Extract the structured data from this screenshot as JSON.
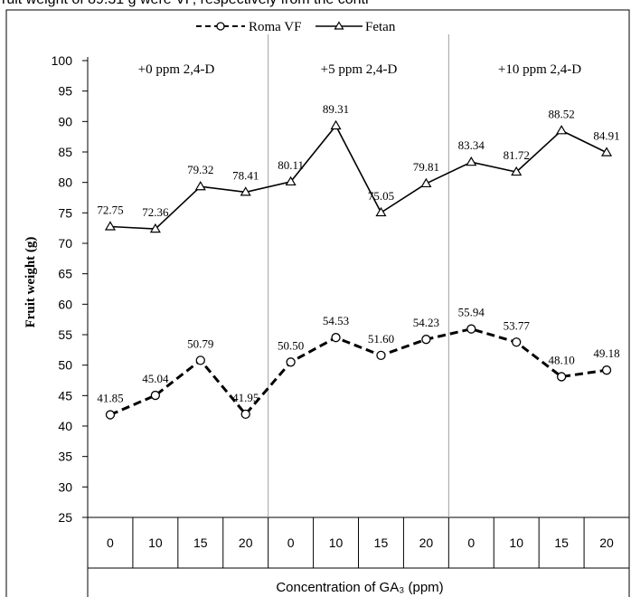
{
  "header_text": "ruit  weight  of  89.31  g  were       VF, respectively from the contr",
  "chart_data": {
    "type": "line",
    "xlabel": "Concentration of GA₃ (ppm)",
    "ylabel": "Fruit weight (g)",
    "ylim": [
      25,
      100
    ],
    "yticks": [
      "25",
      "30",
      "35",
      "40",
      "45",
      "50",
      "55",
      "60",
      "65",
      "70",
      "75",
      "80",
      "85",
      "90",
      "95",
      "100"
    ],
    "groups": [
      "+0 ppm 2,4-D",
      "+5 ppm 2,4-D",
      "+10 ppm 2,4-D"
    ],
    "categories": [
      "0",
      "10",
      "15",
      "20",
      "0",
      "10",
      "15",
      "20",
      "0",
      "10",
      "15",
      "20"
    ],
    "legend_position": "top-center",
    "series": [
      {
        "name": "Roma VF",
        "marker": "circle",
        "line_style": "dashed",
        "values": [
          41.85,
          45.04,
          50.79,
          41.95,
          50.5,
          54.53,
          51.6,
          54.23,
          55.94,
          53.77,
          48.1,
          49.18
        ],
        "labels": [
          "41.85",
          "45.04",
          "50.79",
          "41.95",
          "50.50",
          "54.53",
          "51.60",
          "54.23",
          "55.94",
          "53.77",
          "48.10",
          "49.18"
        ]
      },
      {
        "name": "Fetan",
        "marker": "triangle",
        "line_style": "solid",
        "values": [
          72.75,
          72.36,
          79.32,
          78.41,
          80.11,
          89.31,
          75.05,
          79.81,
          83.34,
          81.72,
          88.52,
          84.91
        ],
        "labels": [
          "72.75",
          "72.36",
          "79.32",
          "78.41",
          "80.11",
          "89.31",
          "75.05",
          "79.81",
          "83.34",
          "81.72",
          "88.52",
          "84.91"
        ]
      }
    ],
    "grid": false
  }
}
